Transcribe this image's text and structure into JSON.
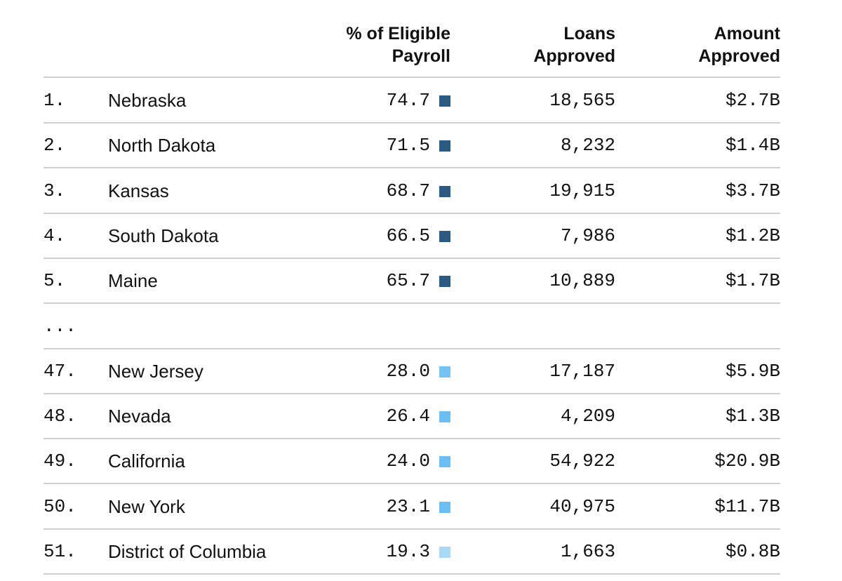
{
  "table": {
    "columns": [
      {
        "lines": [
          "% of Eligible",
          "Payroll"
        ]
      },
      {
        "lines": [
          "Loans",
          "Approved"
        ]
      },
      {
        "lines": [
          "Amount",
          "Approved"
        ]
      }
    ],
    "rows": [
      {
        "rank": "1.",
        "state": "Nebraska",
        "pct": "74.7",
        "color": "#2b5a82",
        "loans": "18,565",
        "amount": "$2.7B"
      },
      {
        "rank": "2.",
        "state": "North Dakota",
        "pct": "71.5",
        "color": "#2b5a82",
        "loans": "8,232",
        "amount": "$1.4B"
      },
      {
        "rank": "3.",
        "state": "Kansas",
        "pct": "68.7",
        "color": "#2b5a82",
        "loans": "19,915",
        "amount": "$3.7B"
      },
      {
        "rank": "4.",
        "state": "South Dakota",
        "pct": "66.5",
        "color": "#2b5a82",
        "loans": "7,986",
        "amount": "$1.2B"
      },
      {
        "rank": "5.",
        "state": "Maine",
        "pct": "65.7",
        "color": "#2b5a82",
        "loans": "10,889",
        "amount": "$1.7B"
      },
      {
        "rank": "..."
      },
      {
        "rank": "47.",
        "state": "New Jersey",
        "pct": "28.0",
        "color": "#74c3f2",
        "loans": "17,187",
        "amount": "$5.9B"
      },
      {
        "rank": "48.",
        "state": "Nevada",
        "pct": "26.4",
        "color": "#6cbff2",
        "loans": "4,209",
        "amount": "$1.3B"
      },
      {
        "rank": "49.",
        "state": "California",
        "pct": "24.0",
        "color": "#6cbff2",
        "loans": "54,922",
        "amount": "$20.9B"
      },
      {
        "rank": "50.",
        "state": "New York",
        "pct": "23.1",
        "color": "#6cbff2",
        "loans": "40,975",
        "amount": "$11.7B"
      },
      {
        "rank": "51.",
        "state": "District of Columbia",
        "pct": "19.3",
        "color": "#a8daf7",
        "loans": "1,663",
        "amount": "$0.8B"
      }
    ]
  }
}
